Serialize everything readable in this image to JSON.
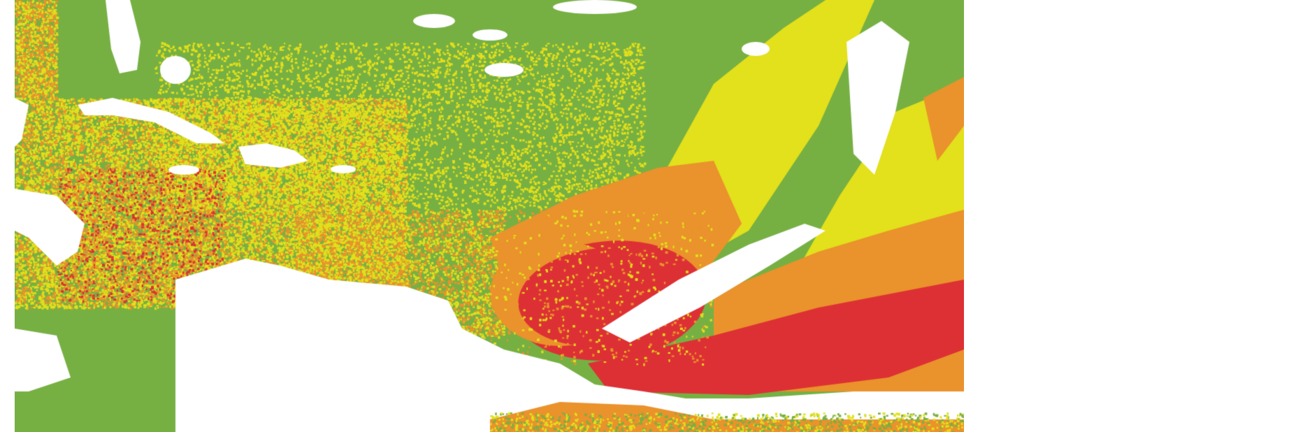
{
  "map": {
    "colors": {
      "background": "#ffffff",
      "class_low": "#76b043",
      "class_moderate": "#e3e01c",
      "class_high": "#ea922c",
      "class_very_high": "#dd3034",
      "masked": "#ffffff"
    }
  }
}
